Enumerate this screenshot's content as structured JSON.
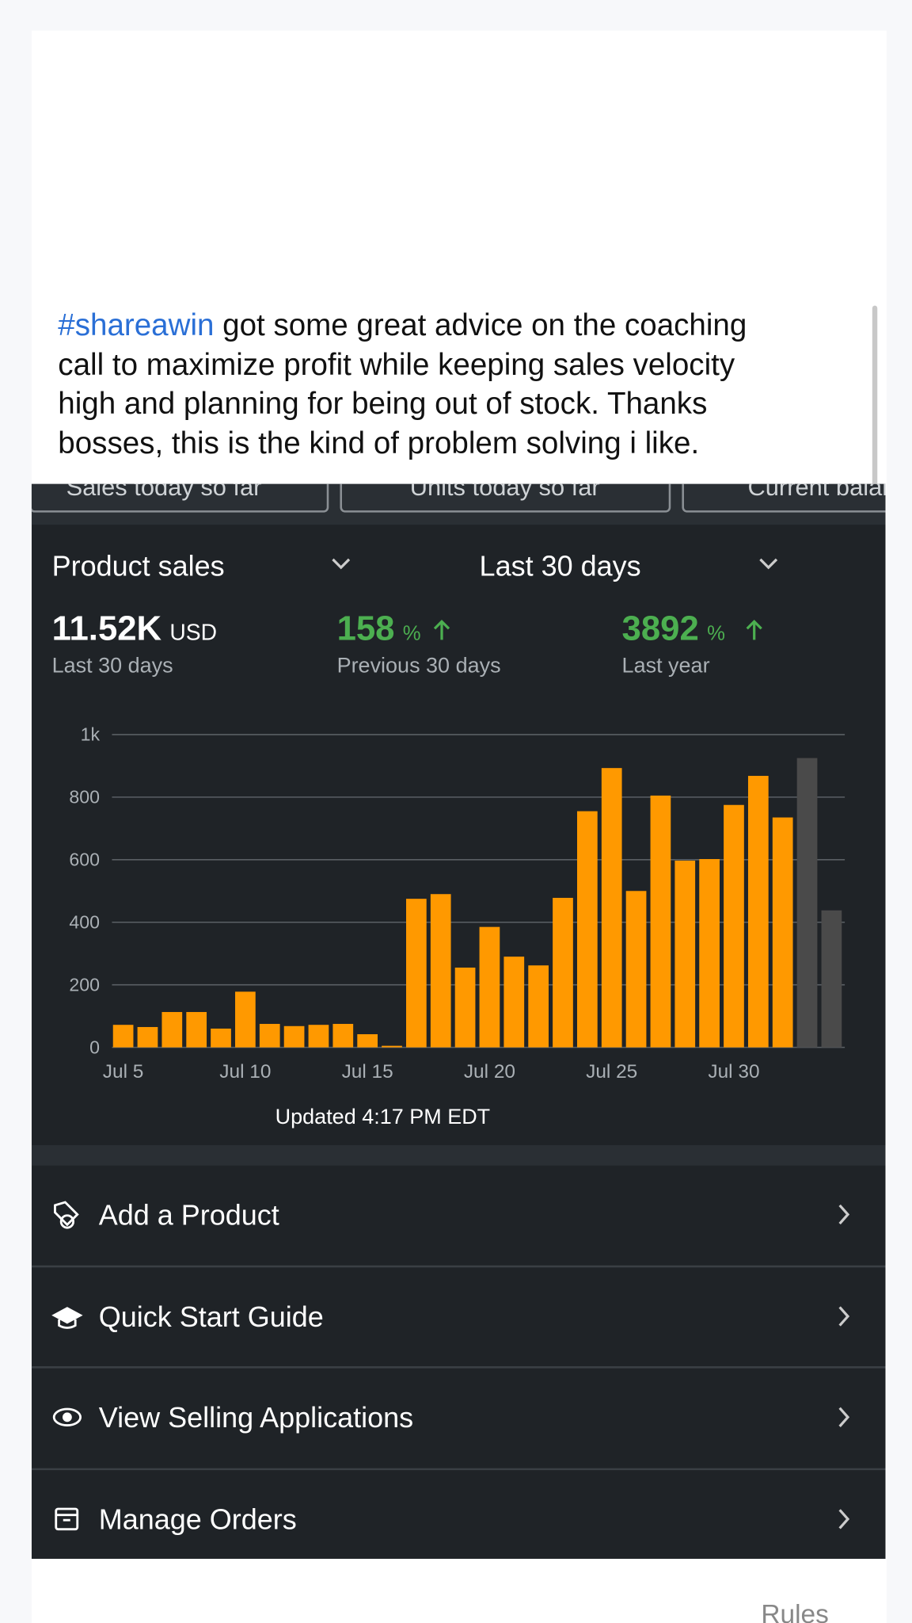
{
  "post": {
    "hashtag": "#shareawin",
    "lines": [
      " got some great advice on the coaching",
      "call to maximize profit while keeping sales velocity",
      "high and planning for being out of stock. Thanks",
      "bosses, this is the kind of problem solving i like."
    ]
  },
  "cards": [
    "Sales today so far",
    "Units today so far",
    "Current balance"
  ],
  "dashboard": {
    "metric": "Product sales",
    "period": "Last 30 days",
    "stats": [
      {
        "value": "11.52K",
        "unit": "USD",
        "label": "Last 30 days"
      },
      {
        "value": "158",
        "unit": "%",
        "label": "Previous 30 days"
      },
      {
        "value": "3892",
        "unit": "%",
        "label": "Last year"
      }
    ],
    "updated": "Updated 4:17 PM EDT"
  },
  "chart_data": {
    "type": "bar",
    "categories": [
      "Jul 5",
      null,
      null,
      null,
      null,
      "Jul 10",
      null,
      null,
      null,
      null,
      "Jul 15",
      null,
      null,
      null,
      null,
      "Jul 20",
      null,
      null,
      null,
      null,
      "Jul 25",
      null,
      null,
      null,
      null,
      "Jul 30",
      null,
      null,
      null,
      null
    ],
    "series": [
      {
        "color": "#ff9900",
        "values": [
          72,
          65,
          113,
          113,
          60,
          178,
          75,
          68,
          72,
          75,
          42,
          5,
          475,
          490,
          255,
          385,
          290,
          262,
          478,
          755,
          893,
          500,
          805,
          597,
          602,
          775,
          868,
          735,
          null,
          null
        ]
      },
      {
        "color": "#4a4a4a",
        "values": [
          null,
          null,
          null,
          null,
          null,
          null,
          null,
          null,
          null,
          null,
          null,
          null,
          null,
          null,
          null,
          null,
          null,
          null,
          null,
          null,
          null,
          null,
          null,
          null,
          null,
          null,
          null,
          null,
          925,
          438
        ]
      }
    ],
    "ylim": [
      0,
      1000
    ],
    "yticks": [
      0,
      200,
      400,
      600,
      800,
      {
        "value": 1000,
        "label": "1k"
      }
    ],
    "grid": true
  },
  "menu": [
    "Add a Product",
    "Quick Start Guide",
    "View Selling Applications",
    "Manage Orders"
  ],
  "footer": "Rules"
}
